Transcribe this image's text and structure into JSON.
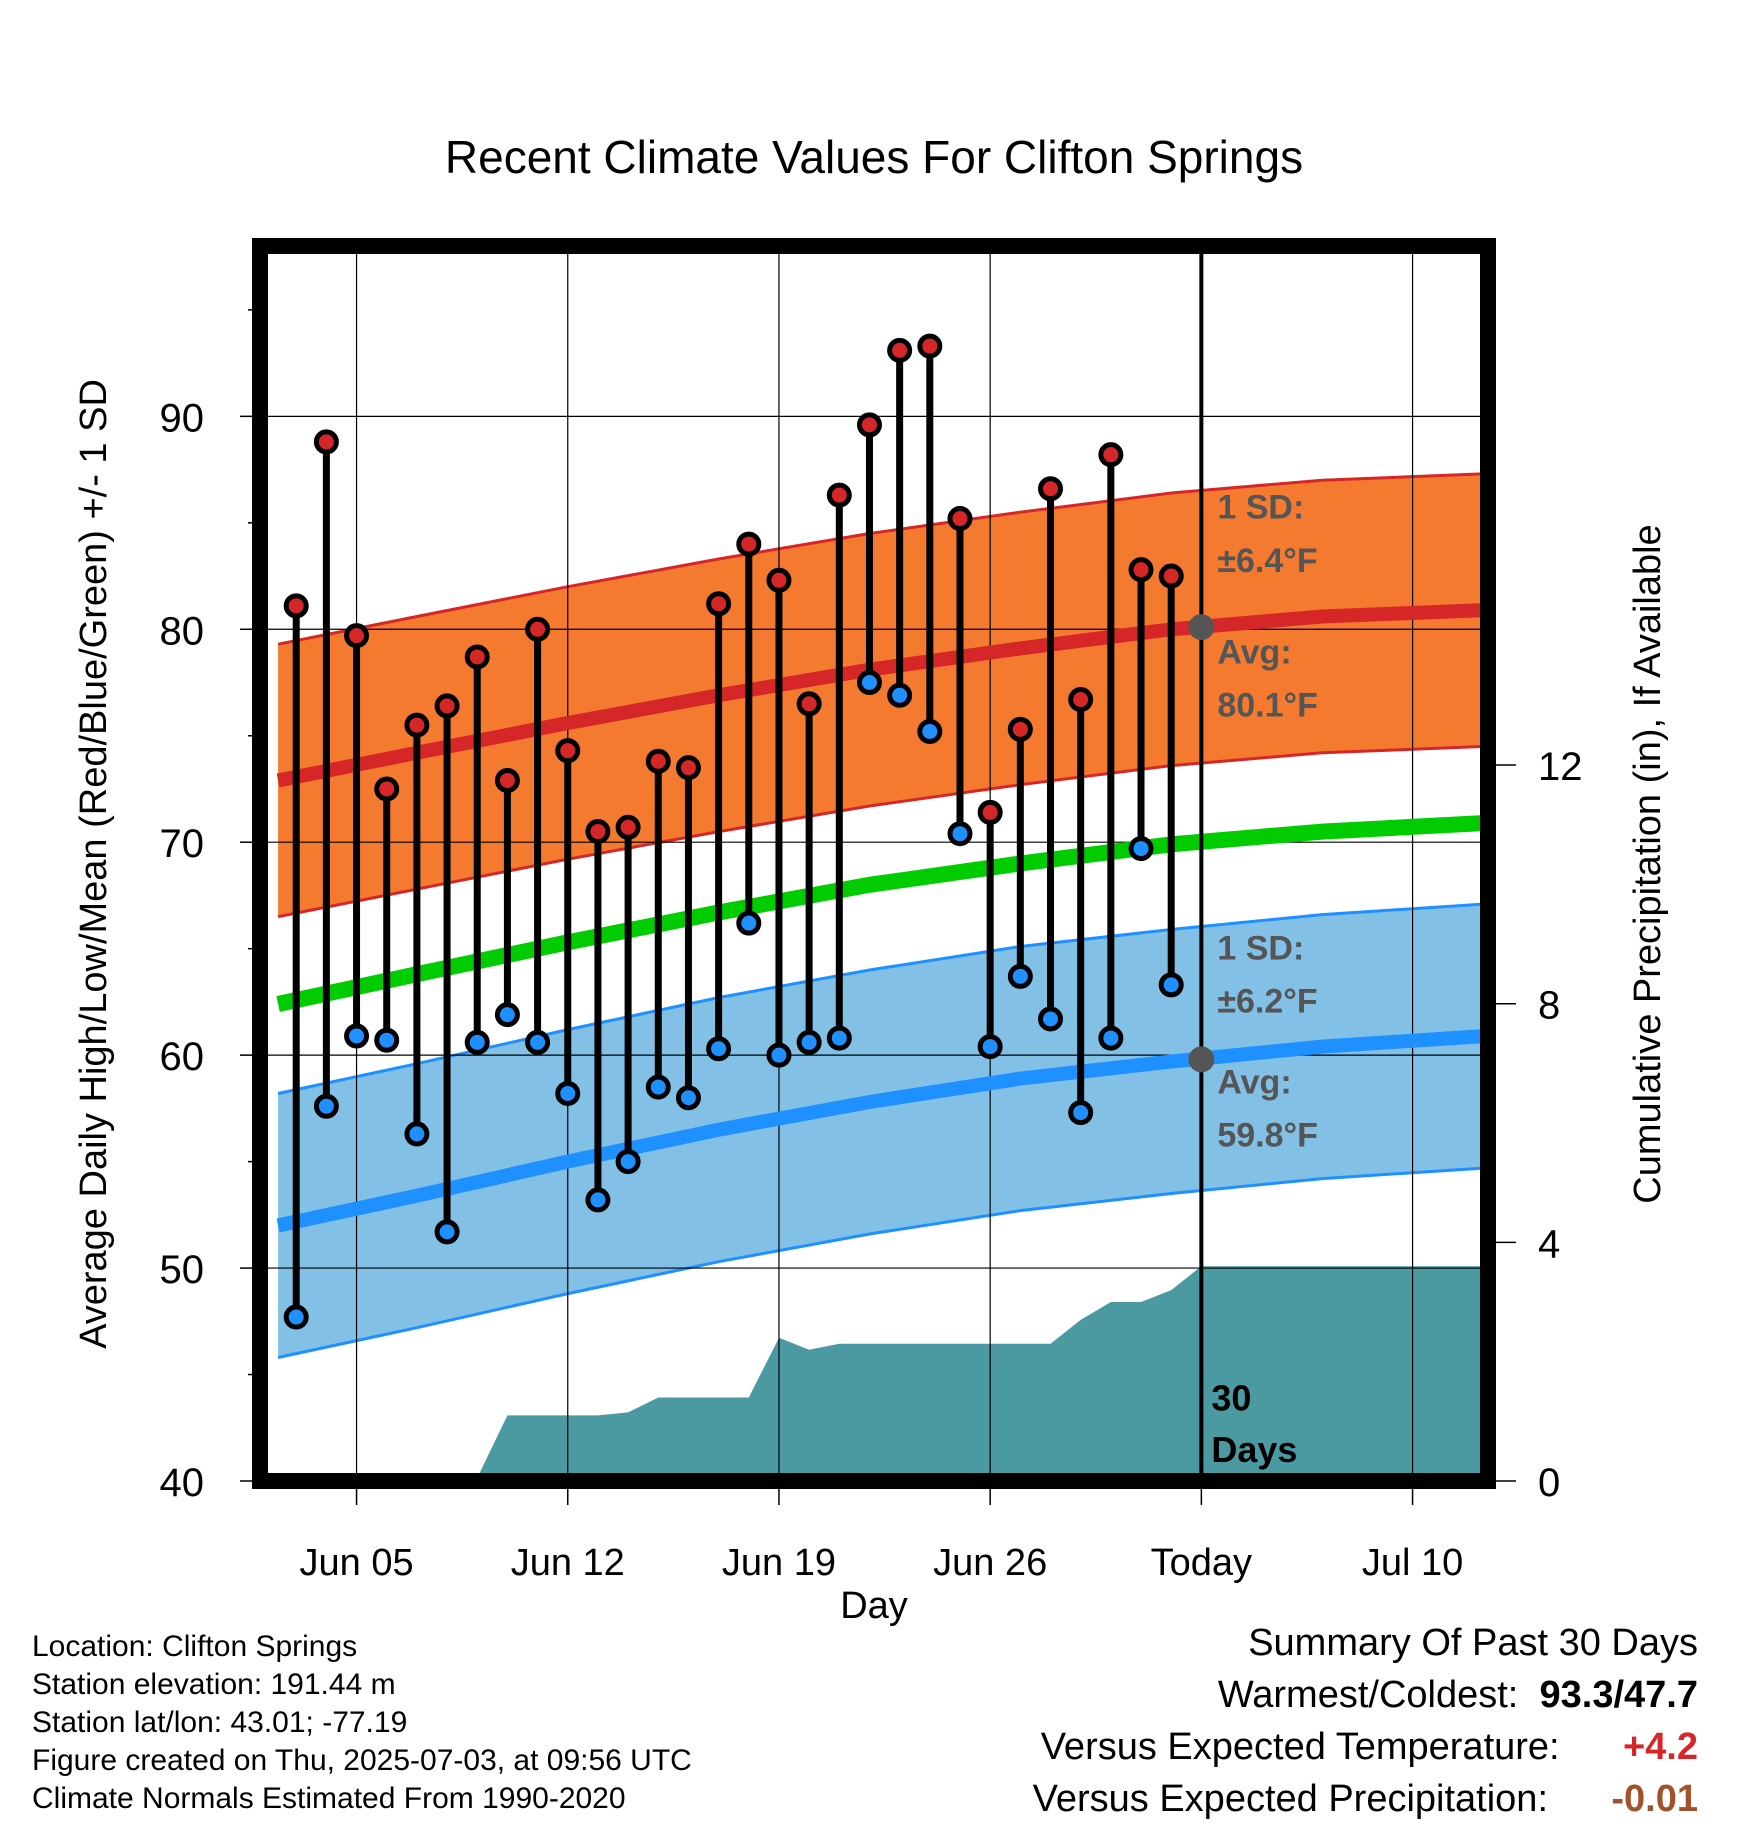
{
  "chart_data": {
    "type": "line",
    "title": "Recent Climate Values For Clifton Springs",
    "xlabel": "Day",
    "ylabel": "Average Daily High/Low/Mean (Red/Blue/Green) +/- 1 SD",
    "y2label": "Cumulative Precipitation (in), If Available",
    "ylim": [
      40,
      98
    ],
    "y2lim": [
      0,
      20.7
    ],
    "xlim": [
      -3.2,
      37.5
    ],
    "yticks": [
      40,
      50,
      60,
      70,
      80,
      90
    ],
    "y2ticks": [
      0,
      4,
      8,
      12
    ],
    "xtick_positions": [
      0,
      7,
      14,
      21,
      28,
      35
    ],
    "xtick_labels": [
      "Jun 05",
      "Jun 12",
      "Jun 19",
      "Jun 26",
      "Today",
      "Jul 10"
    ],
    "grid": true,
    "today_label": "30\nDays",
    "days": [
      -2,
      -1,
      0,
      1,
      2,
      3,
      4,
      5,
      6,
      7,
      8,
      9,
      10,
      11,
      12,
      13,
      14,
      15,
      16,
      17,
      18,
      19,
      20,
      21,
      22,
      23,
      24,
      25,
      26,
      27
    ],
    "series": [
      {
        "name": "High",
        "color": "#d62728",
        "values": [
          81.1,
          88.8,
          79.7,
          72.5,
          75.5,
          76.4,
          78.7,
          72.9,
          80.0,
          74.3,
          70.5,
          70.7,
          73.8,
          73.5,
          81.2,
          84.0,
          82.3,
          76.5,
          86.3,
          89.6,
          93.1,
          93.3,
          85.2,
          71.4,
          75.3,
          86.6,
          76.7,
          88.2,
          82.8,
          82.5
        ]
      },
      {
        "name": "Low",
        "color": "#1e90ff",
        "values": [
          47.7,
          57.6,
          60.9,
          60.7,
          56.3,
          51.7,
          60.6,
          61.9,
          60.6,
          58.2,
          53.2,
          55.0,
          58.5,
          58.0,
          60.3,
          66.2,
          60.0,
          60.6,
          60.8,
          77.5,
          76.9,
          75.2,
          70.4,
          60.4,
          63.7,
          61.7,
          57.3,
          60.8,
          69.7,
          63.3
        ]
      }
    ],
    "normals": {
      "x": [
        -2.6,
        2,
        7,
        12,
        17,
        22,
        27,
        32,
        37.4
      ],
      "high_avg": [
        72.9,
        74.2,
        75.6,
        76.9,
        78.1,
        79.1,
        80.0,
        80.6,
        80.9
      ],
      "high_sd": 6.4,
      "low_avg": [
        52.0,
        53.4,
        55.0,
        56.5,
        57.8,
        58.9,
        59.7,
        60.4,
        60.9
      ],
      "low_sd": 6.2,
      "mean": [
        62.4,
        63.8,
        65.3,
        66.7,
        68.0,
        69.0,
        69.9,
        70.5,
        70.9
      ],
      "colors": {
        "high_band": "#f47a30",
        "high_avg": "#d62728",
        "low_band": "#82c0e6",
        "low_avg": "#1e90ff",
        "mean": "#00cc00",
        "precip": "#4b9aa2"
      }
    },
    "precip": {
      "x": [
        -3.2,
        0.0,
        3.0,
        4.0,
        5.0,
        8.0,
        9.0,
        10.0,
        13.0,
        14.0,
        15.0,
        16.0,
        17.0,
        18.0,
        19.0,
        20.0,
        21.0,
        22.0,
        23.0,
        24.0,
        25.0,
        26.0,
        27.0,
        28.0,
        37.5
      ],
      "y": [
        0.0,
        0.0,
        0.05,
        0.05,
        1.1,
        1.1,
        1.15,
        1.4,
        1.4,
        2.4,
        2.2,
        2.3,
        2.3,
        2.3,
        2.3,
        2.3,
        2.3,
        2.3,
        2.3,
        2.7,
        3.0,
        3.0,
        3.2,
        3.6,
        3.6
      ]
    },
    "annotations": {
      "high_sd_label": "1 SD:",
      "high_sd_value": "±6.4°F",
      "high_avg_label": "Avg:",
      "high_avg_value": "80.1°F",
      "low_sd_label": "1 SD:",
      "low_sd_value": "±6.2°F",
      "low_avg_label": "Avg:",
      "low_avg_value": "59.8°F",
      "today_high_avg": 80.1,
      "today_low_avg": 59.8
    }
  },
  "meta": {
    "location": "Location: Clifton Springs",
    "elevation": "Station elevation: 191.44 m",
    "latlon": "Station lat/lon: 43.01; -77.19",
    "created": "Figure created on Thu, 2025-07-03, at 09:56 UTC",
    "normals": "Climate Normals Estimated From 1990-2020"
  },
  "summary": {
    "title": "Summary Of Past 30 Days",
    "warmest_label": "Warmest/Coldest:",
    "warmest_value": "93.3",
    "coldest_value": "47.7",
    "temp_label": "Versus Expected Temperature:",
    "temp_value": "+4.2",
    "temp_color": "#d62728",
    "precip_label": "Versus Expected Precipitation:",
    "precip_value": "-0.01",
    "precip_color": "#a0522d"
  }
}
